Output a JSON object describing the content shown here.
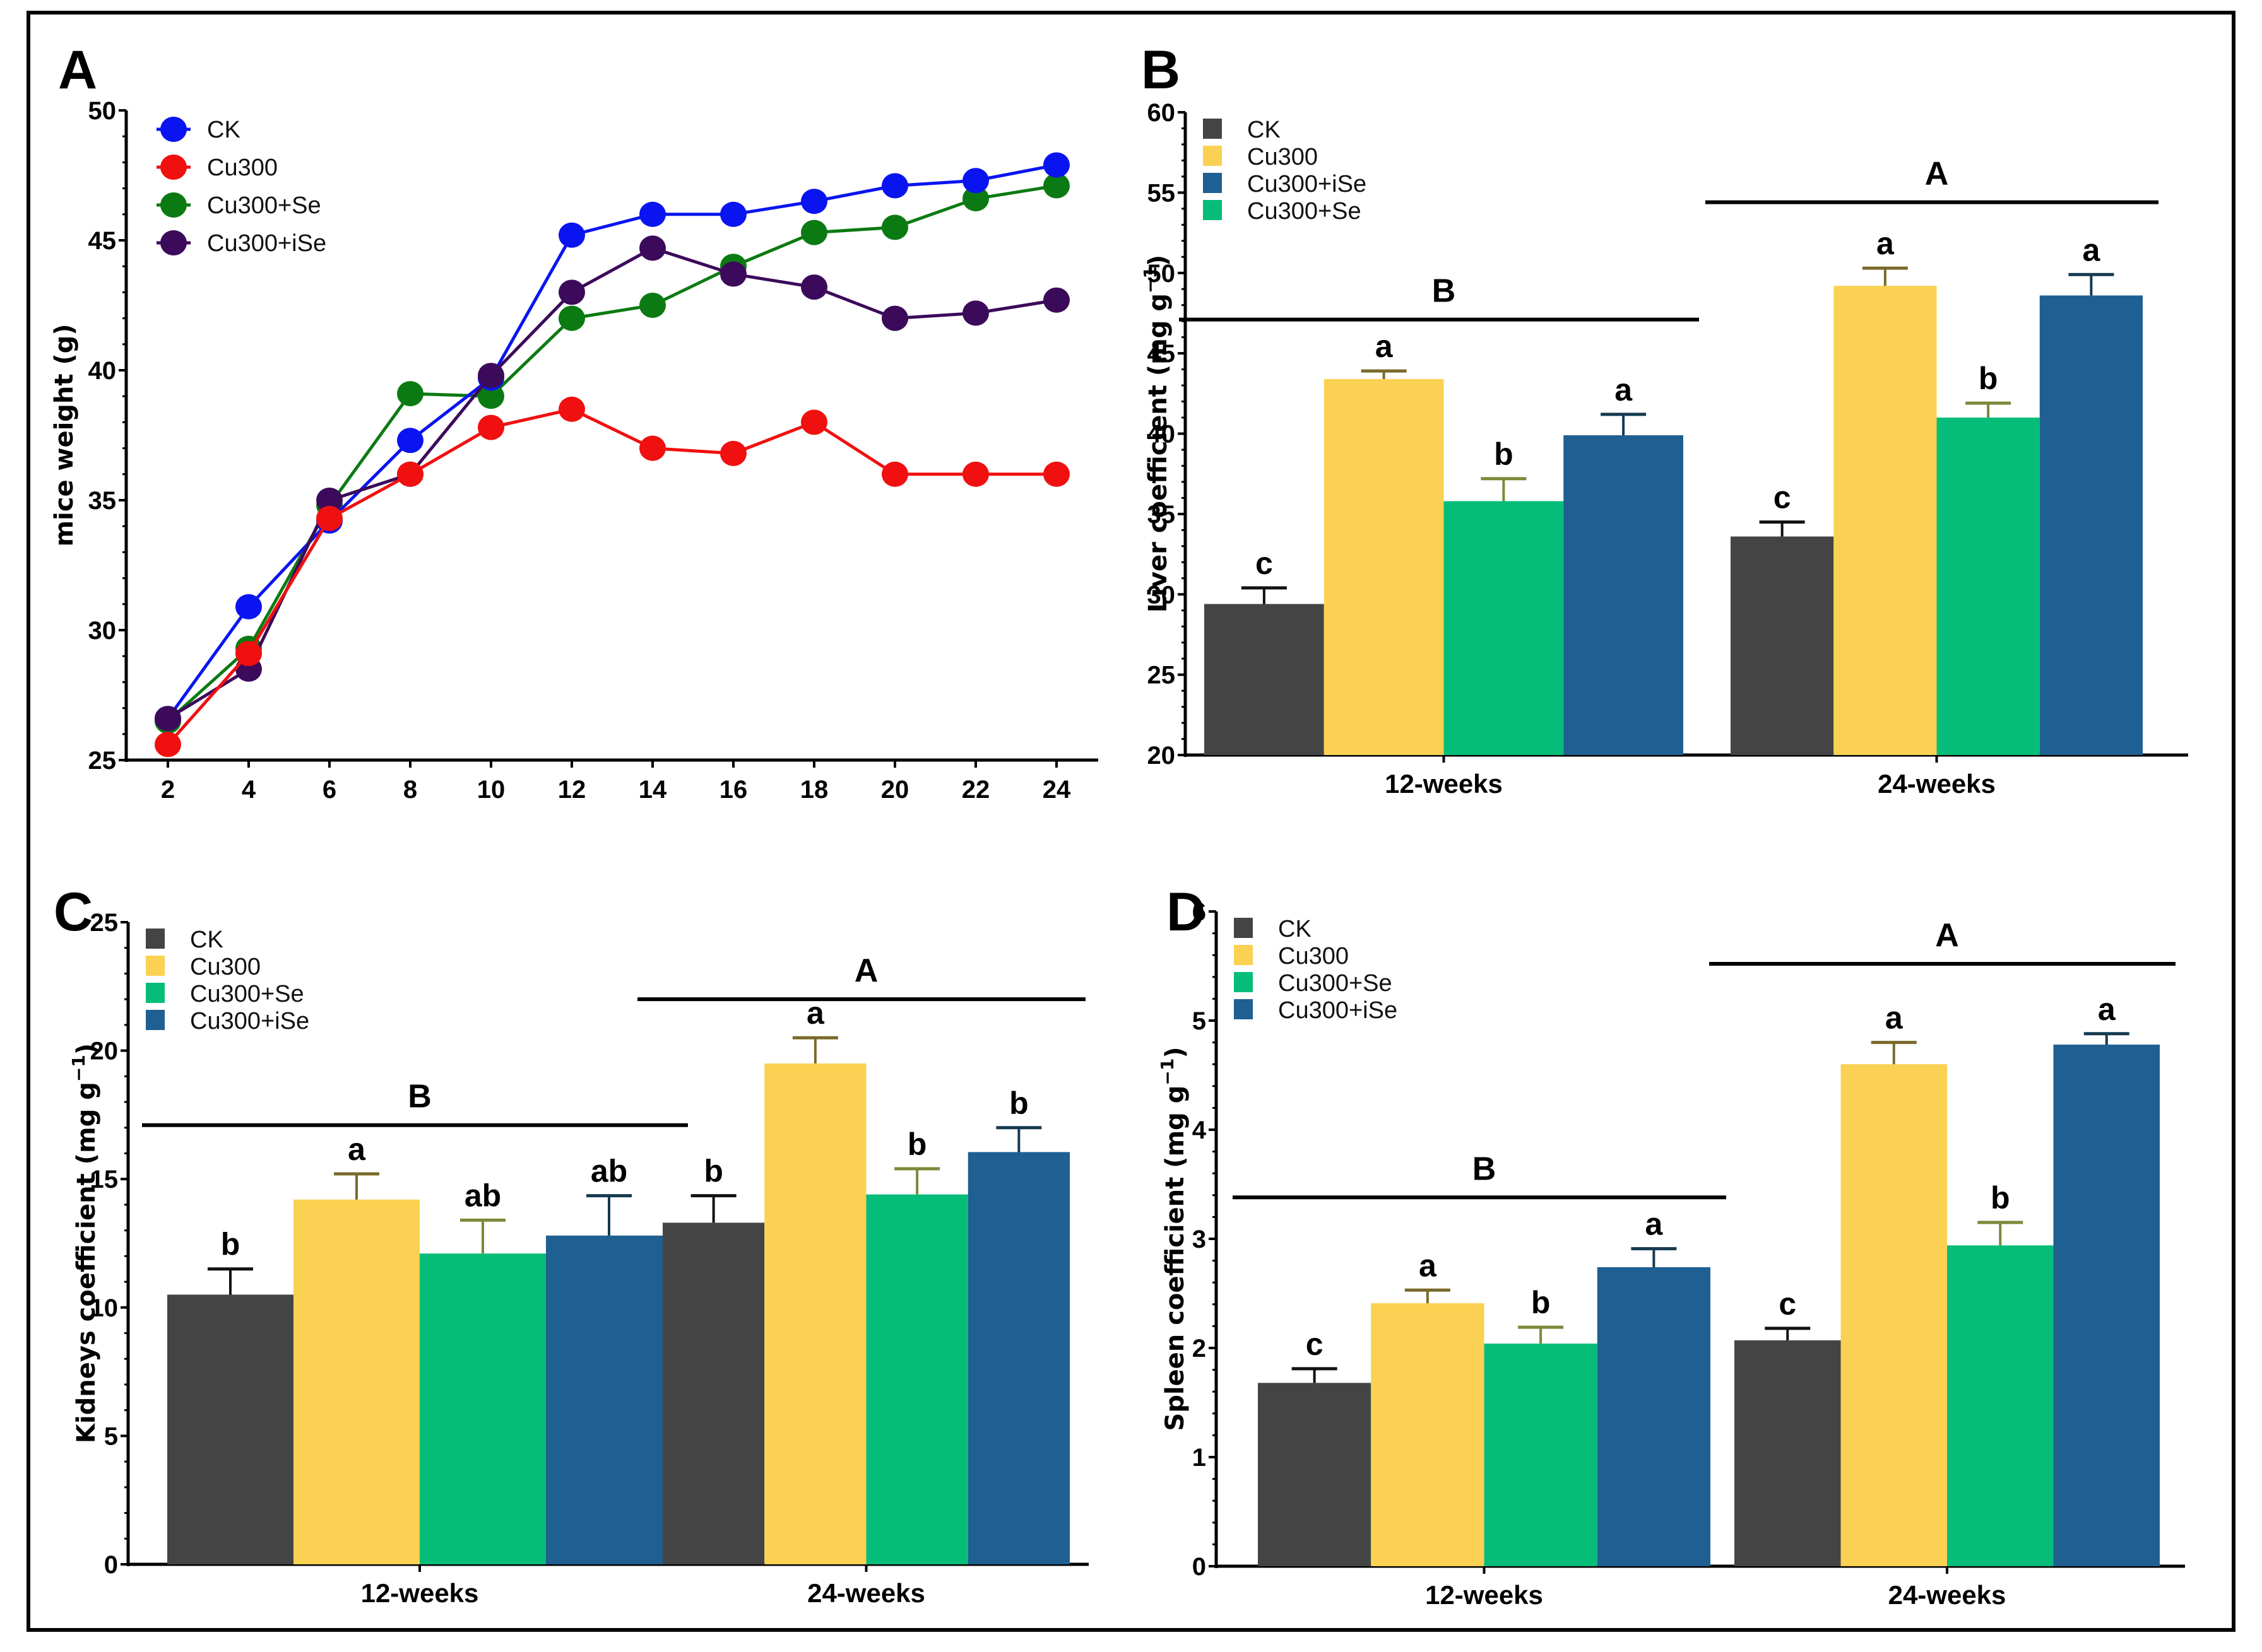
{
  "figure": {
    "panel_letters": [
      "A",
      "B",
      "C",
      "D"
    ]
  },
  "colors": {
    "CK_line": "#0a14f0",
    "Cu300_line": "#f01010",
    "Cu300+Se_line": "#0c7a12",
    "Cu300+iSe_line": "#3c0a5a",
    "CK_bar": "#444444",
    "Cu300_bar": "#fad152",
    "Cu300+Se_bar": "#05bd78",
    "Cu300+iSe_bar": "#1f5f91",
    "Cu300_err": "#7a6a2a",
    "Cu300+Se_err": "#7a8a3a",
    "Cu300+iSe_err": "#153a50",
    "CK_err": "#111111"
  },
  "chart_data": [
    {
      "id": "A",
      "type": "line",
      "title": "",
      "xlabel": "",
      "ylabel": "mice weight (g)",
      "x": [
        2,
        4,
        6,
        8,
        10,
        12,
        14,
        16,
        18,
        20,
        22,
        24
      ],
      "xticks": [
        "2",
        "4",
        "6",
        "8",
        "10",
        "12",
        "14",
        "16",
        "18",
        "20",
        "22",
        "24"
      ],
      "ylim": [
        25,
        50
      ],
      "yticks": [
        "25",
        "30",
        "35",
        "40",
        "45",
        "50"
      ],
      "legend_position": "top-left",
      "series": [
        {
          "name": "CK",
          "color_key": "CK_line",
          "values": [
            26.6,
            30.9,
            34.2,
            37.3,
            39.7,
            45.2,
            46.0,
            46.0,
            46.5,
            47.1,
            47.3,
            47.9
          ]
        },
        {
          "name": "Cu300",
          "color_key": "Cu300_line",
          "values": [
            25.6,
            29.1,
            34.3,
            36.0,
            37.8,
            38.5,
            37.0,
            36.8,
            38.0,
            36.0,
            36.0,
            36.0
          ]
        },
        {
          "name": "Cu300+Se",
          "color_key": "Cu300+Se_line",
          "values": [
            26.5,
            29.3,
            34.8,
            39.1,
            39.0,
            42.0,
            42.5,
            44.0,
            45.3,
            45.5,
            46.6,
            47.1
          ]
        },
        {
          "name": "Cu300+iSe",
          "color_key": "Cu300+iSe_line",
          "values": [
            26.6,
            28.5,
            35.0,
            36.0,
            39.8,
            43.0,
            44.7,
            43.7,
            43.2,
            42.0,
            42.2,
            42.7
          ]
        }
      ]
    },
    {
      "id": "B",
      "type": "bar",
      "title": "",
      "xlabel": "",
      "ylabel": "Liver coefficient (mg g",
      "ylabel_sup": "−1",
      "ylabel_close": ")",
      "categories": [
        "12-weeks",
        "24-weeks"
      ],
      "ylim": [
        20,
        60
      ],
      "yticks": [
        "20",
        "25",
        "30",
        "35",
        "40",
        "45",
        "50",
        "55",
        "60"
      ],
      "legend_position": "top-left",
      "legend_order": [
        "CK",
        "Cu300",
        "Cu300+iSe",
        "Cu300+Se"
      ],
      "series": [
        {
          "name": "CK",
          "color_key": "CK_bar",
          "err_key": "CK_err",
          "values": [
            29.4,
            33.6
          ],
          "err_top": [
            30.4,
            34.5
          ],
          "letters": [
            "c",
            "c"
          ]
        },
        {
          "name": "Cu300",
          "color_key": "Cu300_bar",
          "err_key": "Cu300_err",
          "values": [
            43.4,
            49.2
          ],
          "err_top": [
            43.9,
            50.3
          ],
          "letters": [
            "a",
            "a"
          ]
        },
        {
          "name": "Cu300+Se",
          "color_key": "Cu300+Se_bar",
          "err_key": "Cu300+Se_err",
          "values": [
            35.8,
            41.0
          ],
          "err_top": [
            37.2,
            41.9
          ],
          "letters": [
            "b",
            "b"
          ]
        },
        {
          "name": "Cu300+iSe",
          "color_key": "Cu300+iSe_bar",
          "err_key": "Cu300+iSe_err",
          "values": [
            39.9,
            48.6
          ],
          "err_top": [
            41.2,
            49.9
          ],
          "letters": [
            "a",
            "a"
          ]
        }
      ],
      "group_letters": [
        {
          "label": "B",
          "y": 47.1
        },
        {
          "label": "A",
          "y": 54.4
        }
      ]
    },
    {
      "id": "C",
      "type": "bar",
      "title": "",
      "xlabel": "",
      "ylabel": "Kidneys coefficient (mg g",
      "ylabel_sup": "−1",
      "ylabel_close": ")",
      "categories": [
        "12-weeks",
        "24-weeks"
      ],
      "ylim": [
        0,
        25
      ],
      "yticks": [
        "0",
        "5",
        "10",
        "15",
        "20",
        "25"
      ],
      "legend_position": "top-left",
      "legend_order": [
        "CK",
        "Cu300",
        "Cu300+Se",
        "Cu300+iSe"
      ],
      "series": [
        {
          "name": "CK",
          "color_key": "CK_bar",
          "err_key": "CK_err",
          "values": [
            10.5,
            13.3
          ],
          "err_top": [
            11.5,
            14.35
          ],
          "letters": [
            "b",
            "b"
          ]
        },
        {
          "name": "Cu300",
          "color_key": "Cu300_bar",
          "err_key": "Cu300_err",
          "values": [
            14.2,
            19.5
          ],
          "err_top": [
            15.2,
            20.5
          ],
          "letters": [
            "a",
            "a"
          ]
        },
        {
          "name": "Cu300+Se",
          "color_key": "Cu300+Se_bar",
          "err_key": "Cu300+Se_err",
          "values": [
            12.1,
            14.4
          ],
          "err_top": [
            13.4,
            15.4
          ],
          "letters": [
            "ab",
            "b"
          ]
        },
        {
          "name": "Cu300+iSe",
          "color_key": "Cu300+iSe_bar",
          "err_key": "Cu300+iSe_err",
          "values": [
            12.8,
            16.05
          ],
          "err_top": [
            14.35,
            17.0
          ],
          "letters": [
            "ab",
            "b"
          ]
        }
      ],
      "group_letters": [
        {
          "label": "B",
          "y": 17.1
        },
        {
          "label": "A",
          "y": 22.0
        }
      ]
    },
    {
      "id": "D",
      "type": "bar",
      "title": "",
      "xlabel": "",
      "ylabel": "Spleen coefficient (mg g",
      "ylabel_sup": "−1",
      "ylabel_close": ")",
      "categories": [
        "12-weeks",
        "24-weeks"
      ],
      "ylim": [
        0,
        6
      ],
      "yticks": [
        "0",
        "1",
        "2",
        "3",
        "4",
        "5",
        "6"
      ],
      "legend_position": "top-left",
      "legend_order": [
        "CK",
        "Cu300",
        "Cu300+Se",
        "Cu300+iSe"
      ],
      "series": [
        {
          "name": "CK",
          "color_key": "CK_bar",
          "err_key": "CK_err",
          "values": [
            1.68,
            2.07
          ],
          "err_top": [
            1.81,
            2.18
          ],
          "letters": [
            "c",
            "c"
          ]
        },
        {
          "name": "Cu300",
          "color_key": "Cu300_bar",
          "err_key": "Cu300_err",
          "values": [
            2.41,
            4.6
          ],
          "err_top": [
            2.53,
            4.8
          ],
          "letters": [
            "a",
            "a"
          ]
        },
        {
          "name": "Cu300+Se",
          "color_key": "Cu300+Se_bar",
          "err_key": "Cu300+Se_err",
          "values": [
            2.04,
            2.94
          ],
          "err_top": [
            2.19,
            3.15
          ],
          "letters": [
            "b",
            "b"
          ]
        },
        {
          "name": "Cu300+iSe",
          "color_key": "Cu300+iSe_bar",
          "err_key": "Cu300+iSe_err",
          "values": [
            2.74,
            4.78
          ],
          "err_top": [
            2.91,
            4.88
          ],
          "letters": [
            "a",
            "a"
          ]
        }
      ],
      "group_letters": [
        {
          "label": "B",
          "y": 3.38
        },
        {
          "label": "A",
          "y": 5.52
        }
      ]
    }
  ]
}
